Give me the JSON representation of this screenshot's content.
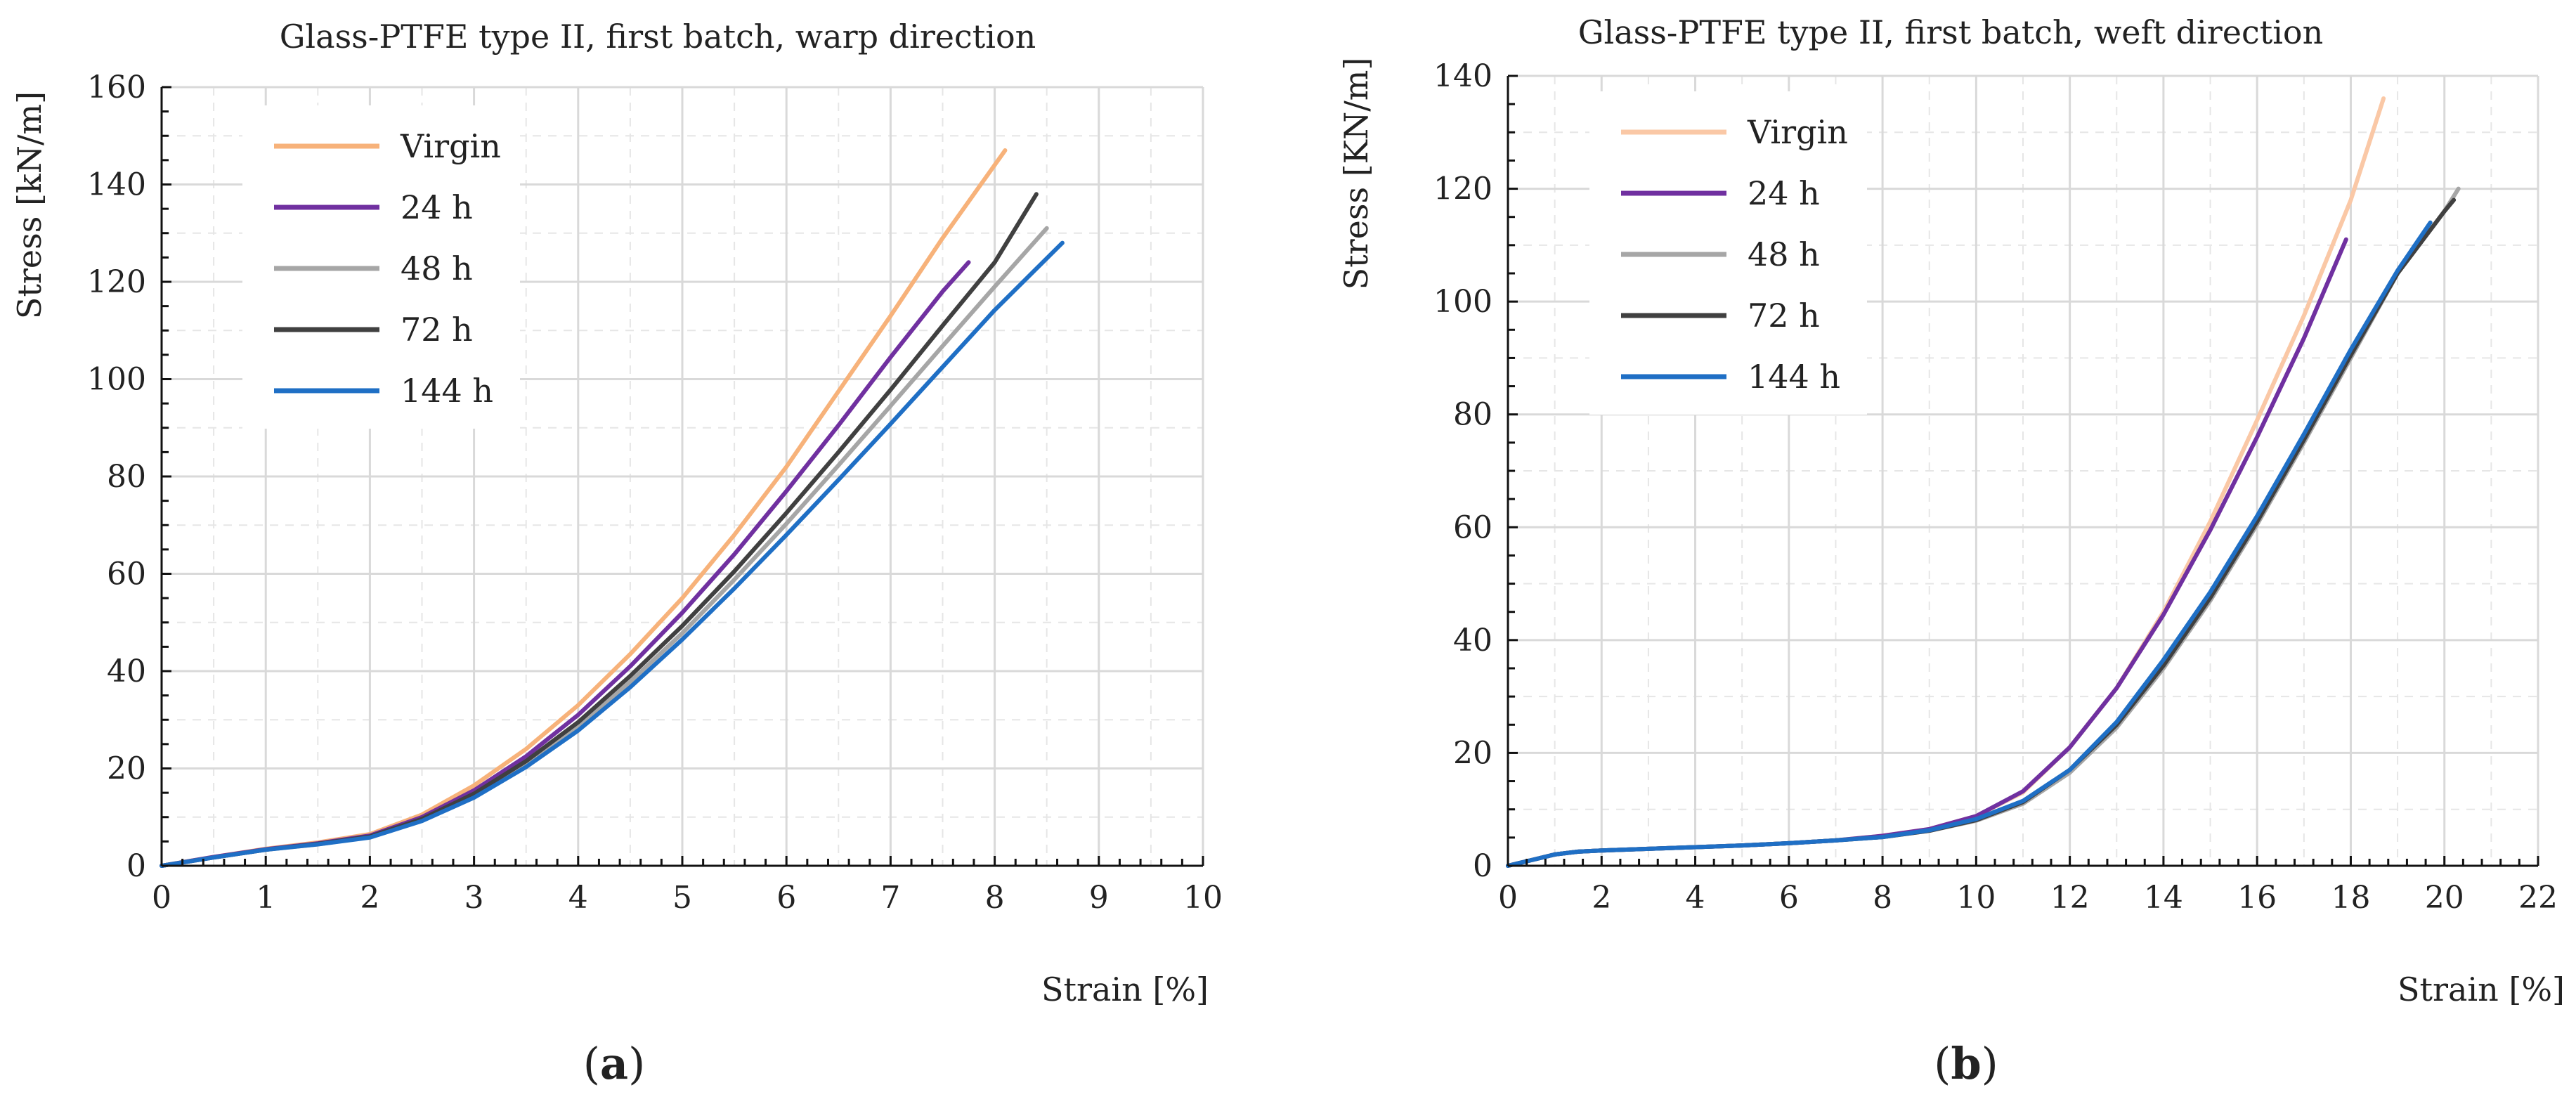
{
  "figure": {
    "panels": [
      {
        "caption_open": "(",
        "caption_letter": "a",
        "caption_close": ")"
      },
      {
        "caption_open": "(",
        "caption_letter": "b",
        "caption_close": ")"
      }
    ]
  },
  "chart_data": [
    {
      "type": "line",
      "title": "Glass-PTFE  type II, first batch,  warp  direction",
      "xlabel": "Strain  [%]",
      "ylabel": "Stress  [kN/m]",
      "xlim": [
        0,
        10
      ],
      "ylim": [
        0,
        160
      ],
      "xticks": [
        0,
        1,
        2,
        3,
        4,
        5,
        6,
        7,
        8,
        9,
        10
      ],
      "yticks": [
        0,
        20,
        40,
        60,
        80,
        100,
        120,
        140,
        160
      ],
      "grid": true,
      "legend_position": "top-left",
      "series": [
        {
          "name": "Virgin",
          "color": "#f7b27a",
          "x": [
            0,
            0.5,
            1,
            1.5,
            2,
            2.5,
            3,
            3.5,
            4,
            4.5,
            5,
            5.5,
            6,
            6.5,
            7,
            7.5,
            8.1
          ],
          "y": [
            0,
            1.8,
            3.5,
            4.8,
            6.5,
            10.5,
            16.5,
            24,
            33,
            43.5,
            55,
            68,
            82,
            97.5,
            113,
            129,
            147
          ]
        },
        {
          "name": "24 h",
          "color": "#7030a0",
          "x": [
            0,
            0.5,
            1,
            1.5,
            2,
            2.5,
            3,
            3.5,
            4,
            4.5,
            5,
            5.5,
            6,
            6.5,
            7,
            7.5,
            7.75
          ],
          "y": [
            0,
            1.8,
            3.4,
            4.6,
            6.2,
            10,
            15.5,
            22.5,
            31,
            41,
            52,
            64,
            77,
            90.5,
            104.5,
            118,
            124
          ]
        },
        {
          "name": "48 h",
          "color": "#a6a6a6",
          "x": [
            0,
            0.5,
            1,
            1.5,
            2,
            2.5,
            3,
            3.5,
            4,
            4.5,
            5,
            5.5,
            6,
            6.5,
            7,
            7.5,
            8,
            8.5
          ],
          "y": [
            0,
            1.7,
            3.3,
            4.4,
            5.9,
            9.3,
            14.3,
            20.8,
            28.5,
            37.8,
            47.8,
            58.8,
            70.3,
            82.3,
            94.5,
            106.8,
            119,
            131
          ]
        },
        {
          "name": "72 h",
          "color": "#404040",
          "x": [
            0,
            0.5,
            1,
            1.5,
            2,
            2.5,
            3,
            3.5,
            4,
            4.5,
            5,
            5.5,
            6,
            6.5,
            7,
            7.5,
            8,
            8.4
          ],
          "y": [
            0,
            1.7,
            3.3,
            4.5,
            6,
            9.6,
            14.8,
            21.5,
            29.5,
            39,
            49.3,
            60.5,
            72.5,
            85,
            97.8,
            111,
            124,
            138
          ]
        },
        {
          "name": "144 h",
          "color": "#1f6fc5",
          "x": [
            0,
            0.5,
            1,
            1.5,
            2,
            2.5,
            3,
            3.5,
            4,
            4.5,
            5,
            5.5,
            6,
            6.5,
            7,
            7.5,
            8,
            8.65
          ],
          "y": [
            0,
            1.7,
            3.3,
            4.4,
            5.8,
            9.2,
            14,
            20.3,
            27.8,
            36.7,
            46.5,
            57,
            68,
            79.3,
            90.8,
            102.5,
            114.2,
            128
          ]
        }
      ]
    },
    {
      "type": "line",
      "title": "Glass-PTFE   type  II, first batch,  weft direction",
      "xlabel": "Strain  [%]",
      "ylabel": "Stress  [KN/m]",
      "xlim": [
        0,
        22
      ],
      "ylim": [
        0,
        140
      ],
      "xticks": [
        0,
        2,
        4,
        6,
        8,
        10,
        12,
        14,
        16,
        18,
        20,
        22
      ],
      "yticks": [
        0,
        20,
        40,
        60,
        80,
        100,
        120,
        140
      ],
      "grid": true,
      "legend_position": "top-left",
      "series": [
        {
          "name": "Virgin",
          "color": "#fac8a6",
          "x": [
            0,
            0.5,
            1,
            1.5,
            2,
            3,
            4,
            5,
            6,
            7,
            8,
            9,
            10,
            11,
            12,
            13,
            14,
            15,
            16,
            17,
            18,
            18.7
          ],
          "y": [
            0,
            1,
            2,
            2.5,
            2.7,
            3,
            3.3,
            3.6,
            4,
            4.5,
            5.3,
            6.5,
            8.8,
            13,
            21,
            31.5,
            45,
            61,
            79,
            97.5,
            118,
            136
          ]
        },
        {
          "name": "24 h",
          "color": "#7030a0",
          "x": [
            0,
            0.5,
            1,
            1.5,
            2,
            3,
            4,
            5,
            6,
            7,
            8,
            9,
            10,
            11,
            12,
            13,
            14,
            15,
            16,
            17,
            17.9
          ],
          "y": [
            0,
            1,
            2,
            2.5,
            2.7,
            3,
            3.3,
            3.6,
            4,
            4.5,
            5.3,
            6.5,
            8.8,
            13.2,
            21,
            31.5,
            44.5,
            59.5,
            76,
            93.5,
            111
          ]
        },
        {
          "name": "48 h",
          "color": "#a6a6a6",
          "x": [
            0,
            0.5,
            1,
            1.5,
            2,
            3,
            4,
            5,
            6,
            7,
            8,
            9,
            10,
            11,
            12,
            13,
            14,
            15,
            16,
            17,
            18,
            19,
            20,
            20.3
          ],
          "y": [
            0,
            1,
            2,
            2.5,
            2.7,
            3,
            3.3,
            3.6,
            4,
            4.5,
            5.1,
            6.2,
            8,
            11,
            16.5,
            24.5,
            35,
            47,
            60.5,
            75,
            90,
            105,
            116,
            120
          ]
        },
        {
          "name": "72 h",
          "color": "#404040",
          "x": [
            0,
            0.5,
            1,
            1.5,
            2,
            3,
            4,
            5,
            6,
            7,
            8,
            9,
            10,
            11,
            12,
            13,
            14,
            15,
            16,
            17,
            18,
            19,
            20,
            20.2
          ],
          "y": [
            0,
            1,
            2,
            2.5,
            2.7,
            3,
            3.3,
            3.6,
            4,
            4.5,
            5.1,
            6.2,
            8.1,
            11.3,
            17,
            25,
            35.5,
            47.5,
            61,
            75.5,
            90.5,
            105,
            116,
            118
          ]
        },
        {
          "name": "144 h",
          "color": "#1f6fc5",
          "x": [
            0,
            0.5,
            1,
            1.5,
            2,
            3,
            4,
            5,
            6,
            7,
            8,
            9,
            10,
            11,
            12,
            13,
            14,
            15,
            16,
            17,
            18,
            19,
            19.7
          ],
          "y": [
            0,
            1,
            2,
            2.5,
            2.7,
            3,
            3.3,
            3.6,
            4,
            4.5,
            5.1,
            6.3,
            8.3,
            11.5,
            17,
            25.5,
            36.5,
            48.5,
            62,
            76.5,
            91.5,
            105.5,
            114
          ]
        }
      ]
    }
  ]
}
